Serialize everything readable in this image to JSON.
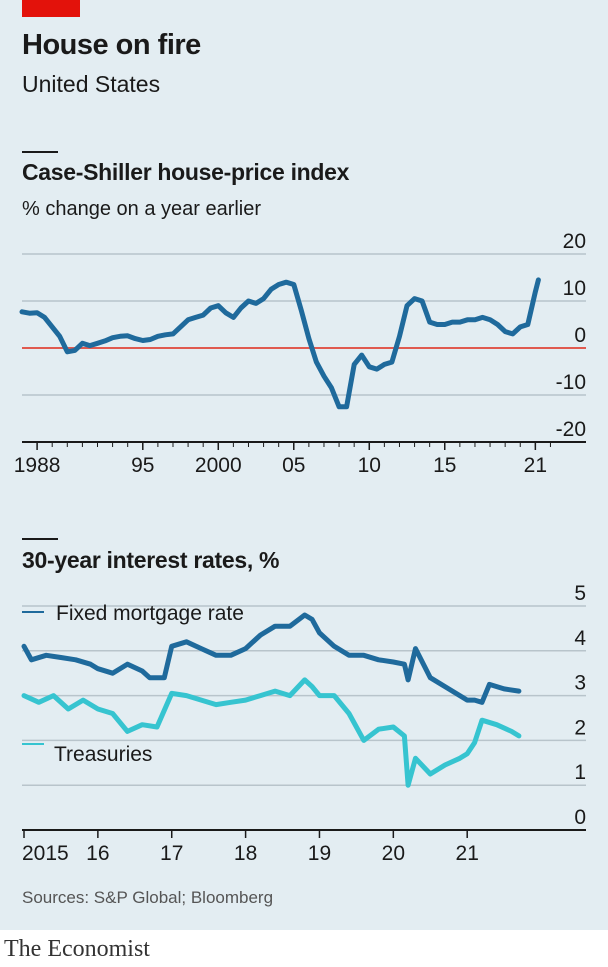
{
  "header": {
    "title": "House on fire",
    "subtitle": "United States"
  },
  "source": "Sources: S&P Global; Bloomberg",
  "brand": "The Economist",
  "colors": {
    "background": "#e3edf2",
    "accent_red": "#e3120b",
    "dark_blue": "#1f6a9c",
    "light_blue": "#36c4d0",
    "zero_line": "#e05a4f",
    "grid": "#b8c4cb"
  },
  "chart_data": [
    {
      "type": "line",
      "title": "Case-Shiller house-price index",
      "subtitle": "% change on a year earlier",
      "ylim": [
        -20,
        20
      ],
      "yticks": [
        20,
        10,
        0,
        -10,
        -20
      ],
      "xlim": [
        1987,
        2022.5
      ],
      "xticks": [
        {
          "value": 1988,
          "label": "1988"
        },
        {
          "value": 1995,
          "label": "95"
        },
        {
          "value": 2000,
          "label": "2000"
        },
        {
          "value": 2005,
          "label": "05"
        },
        {
          "value": 2010,
          "label": "10"
        },
        {
          "value": 2015,
          "label": "15"
        },
        {
          "value": 2021,
          "label": "21"
        }
      ],
      "zero_line": true,
      "series": [
        {
          "color": "#1f6a9c",
          "x": [
            1987.0,
            1987.5,
            1988.0,
            1988.5,
            1989.0,
            1989.5,
            1990.0,
            1990.5,
            1991.0,
            1991.5,
            1992.0,
            1992.5,
            1993.0,
            1993.5,
            1994.0,
            1994.5,
            1995.0,
            1995.5,
            1996.0,
            1996.5,
            1997.0,
            1997.5,
            1998.0,
            1998.5,
            1999.0,
            1999.5,
            2000.0,
            2000.5,
            2001.0,
            2001.5,
            2002.0,
            2002.5,
            2003.0,
            2003.5,
            2004.0,
            2004.5,
            2005.0,
            2005.5,
            2006.0,
            2006.5,
            2007.0,
            2007.5,
            2008.0,
            2008.5,
            2009.0,
            2009.5,
            2010.0,
            2010.5,
            2011.0,
            2011.5,
            2012.0,
            2012.5,
            2013.0,
            2013.5,
            2014.0,
            2014.5,
            2015.0,
            2015.5,
            2016.0,
            2016.5,
            2017.0,
            2017.5,
            2018.0,
            2018.5,
            2019.0,
            2019.5,
            2020.0,
            2020.5,
            2021.0,
            2021.2
          ],
          "values": [
            7.7,
            7.4,
            7.5,
            6.5,
            4.5,
            2.5,
            -0.8,
            -0.5,
            1.0,
            0.5,
            1.0,
            1.5,
            2.2,
            2.5,
            2.6,
            2.0,
            1.6,
            1.8,
            2.5,
            2.8,
            3.0,
            4.5,
            6.0,
            6.5,
            7.0,
            8.5,
            9.0,
            7.5,
            6.5,
            8.5,
            10.0,
            9.5,
            10.5,
            12.5,
            13.5,
            14.0,
            13.5,
            8.0,
            2.0,
            -3.0,
            -6.0,
            -8.5,
            -12.5,
            -12.5,
            -3.5,
            -1.5,
            -4.0,
            -4.5,
            -3.5,
            -3.0,
            2.5,
            9.0,
            10.5,
            10.0,
            5.5,
            5.0,
            5.0,
            5.5,
            5.5,
            6.0,
            6.0,
            6.5,
            6.0,
            5.0,
            3.5,
            3.0,
            4.5,
            5.0,
            12.0,
            14.5
          ]
        }
      ]
    },
    {
      "type": "line",
      "title": "30-year interest rates, %",
      "ylim": [
        0,
        5
      ],
      "yticks": [
        5,
        4,
        3,
        2,
        1,
        0
      ],
      "xlim": [
        2015,
        2022.5
      ],
      "xticks": [
        {
          "value": 2015,
          "label": "2015"
        },
        {
          "value": 2016,
          "label": "16"
        },
        {
          "value": 2017,
          "label": "17"
        },
        {
          "value": 2018,
          "label": "18"
        },
        {
          "value": 2019,
          "label": "19"
        },
        {
          "value": 2020,
          "label": "20"
        },
        {
          "value": 2021,
          "label": "21"
        }
      ],
      "series": [
        {
          "name": "Fixed mortgage rate",
          "color": "#1f6a9c",
          "x": [
            2015.0,
            2015.1,
            2015.3,
            2015.5,
            2015.7,
            2015.9,
            2016.0,
            2016.2,
            2016.4,
            2016.6,
            2016.7,
            2016.9,
            2017.0,
            2017.2,
            2017.4,
            2017.6,
            2017.8,
            2018.0,
            2018.2,
            2018.4,
            2018.6,
            2018.8,
            2018.9,
            2019.0,
            2019.2,
            2019.4,
            2019.6,
            2019.8,
            2020.0,
            2020.15,
            2020.2,
            2020.3,
            2020.5,
            2020.7,
            2020.9,
            2021.0,
            2021.1,
            2021.2,
            2021.3,
            2021.5,
            2021.7
          ],
          "values": [
            4.1,
            3.8,
            3.9,
            3.85,
            3.8,
            3.7,
            3.6,
            3.5,
            3.7,
            3.55,
            3.4,
            3.4,
            4.1,
            4.2,
            4.05,
            3.9,
            3.9,
            4.05,
            4.35,
            4.55,
            4.55,
            4.8,
            4.7,
            4.4,
            4.1,
            3.9,
            3.9,
            3.8,
            3.75,
            3.7,
            3.35,
            4.05,
            3.4,
            3.2,
            3.0,
            2.9,
            2.9,
            2.85,
            3.25,
            3.15,
            3.1
          ]
        },
        {
          "name": "Treasuries",
          "color": "#36c4d0",
          "x": [
            2015.0,
            2015.2,
            2015.4,
            2015.6,
            2015.8,
            2016.0,
            2016.2,
            2016.4,
            2016.6,
            2016.8,
            2017.0,
            2017.2,
            2017.4,
            2017.6,
            2017.8,
            2018.0,
            2018.2,
            2018.4,
            2018.6,
            2018.8,
            2018.9,
            2019.0,
            2019.2,
            2019.4,
            2019.6,
            2019.8,
            2020.0,
            2020.15,
            2020.2,
            2020.3,
            2020.5,
            2020.7,
            2020.9,
            2021.0,
            2021.1,
            2021.2,
            2021.4,
            2021.6,
            2021.7
          ],
          "values": [
            3.0,
            2.85,
            3.0,
            2.7,
            2.9,
            2.7,
            2.6,
            2.2,
            2.35,
            2.3,
            3.05,
            3.0,
            2.9,
            2.8,
            2.85,
            2.9,
            3.0,
            3.1,
            3.0,
            3.35,
            3.2,
            3.0,
            3.0,
            2.6,
            2.0,
            2.25,
            2.3,
            2.1,
            1.0,
            1.6,
            1.25,
            1.45,
            1.6,
            1.7,
            1.95,
            2.45,
            2.35,
            2.2,
            2.1
          ]
        }
      ]
    }
  ]
}
